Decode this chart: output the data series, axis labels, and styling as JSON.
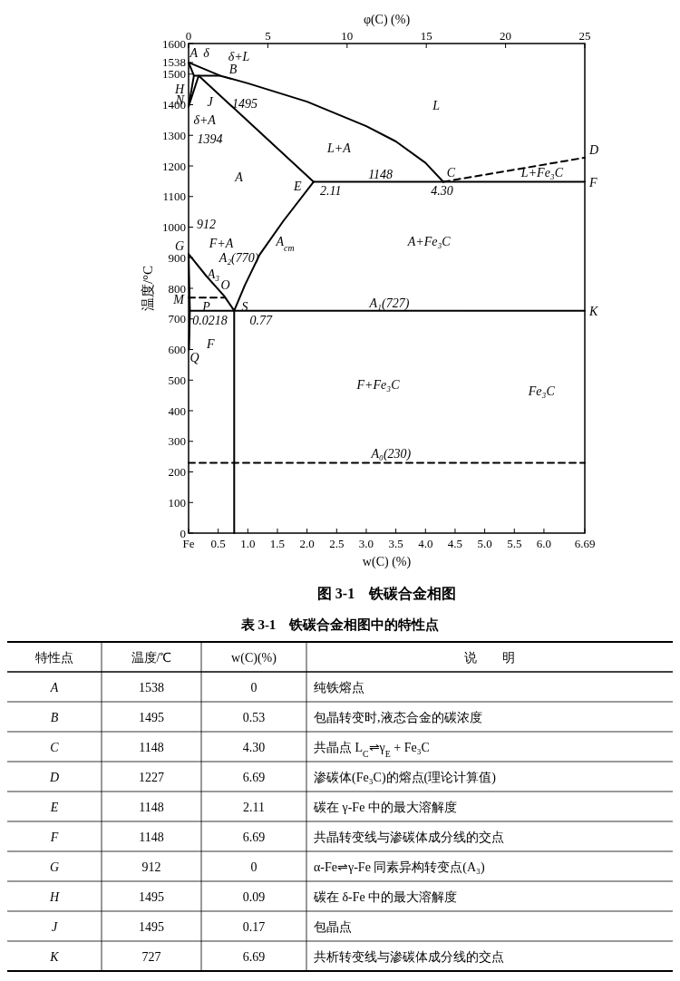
{
  "chart_data": [
    {
      "type": "line",
      "title": "图 3-1　铁碳合金相图",
      "xlabel": "w(C) (%)",
      "ylabel": "温度/°C",
      "x2label": "φ(C)  (%)",
      "xlim": [
        0,
        6.69
      ],
      "xticks": [
        {
          "value": 0,
          "label": "Fe"
        },
        0.5,
        {
          "value": 1,
          "label": "1.0"
        },
        1.5,
        {
          "value": 2,
          "label": "2.0"
        },
        2.5,
        {
          "value": 3,
          "label": "3.0"
        },
        3.5,
        {
          "value": 4,
          "label": "4.0"
        },
        4.5,
        {
          "value": 5,
          "label": "5.0"
        },
        5.5,
        {
          "value": 6,
          "label": "6.0"
        },
        6.69
      ],
      "x2lim": [
        0,
        25
      ],
      "x2ticks": [
        0,
        5,
        10,
        15,
        20,
        25
      ],
      "ylim": [
        0,
        1600
      ],
      "yticks": [
        0,
        100,
        200,
        300,
        400,
        500,
        600,
        700,
        800,
        900,
        1000,
        1100,
        1200,
        1300,
        1400,
        1500,
        1538,
        1600
      ],
      "series": [
        {
          "color": "#000000",
          "x": [
            0,
            0.53,
            1.0,
            2.0,
            3.0,
            3.5,
            4.0,
            4.3
          ],
          "values": [
            1538,
            1495,
            1470,
            1410,
            1330,
            1280,
            1210,
            1148
          ]
        },
        {
          "color": "#000000",
          "x": [
            0,
            0.09,
            0
          ],
          "values": [
            1538,
            1495,
            1394
          ]
        },
        {
          "color": "#000000",
          "x": [
            0.09,
            0.53
          ],
          "values": [
            1495,
            1495
          ]
        },
        {
          "color": "#000000",
          "x": [
            0,
            0.17,
            2.11
          ],
          "values": [
            1394,
            1495,
            1148
          ]
        },
        {
          "color": "#000000",
          "x": [
            2.11,
            6.69
          ],
          "values": [
            1148,
            1148
          ]
        },
        {
          "color": "#000000",
          "x": [
            4.3,
            6.69
          ],
          "values": [
            1148,
            1227
          ],
          "line_style": "dashed"
        },
        {
          "color": "#000000",
          "x": [
            2.11,
            1.6,
            1.2,
            0.95,
            0.77,
            0.77
          ],
          "values": [
            1148,
            1020,
            910,
            810,
            727,
            0
          ]
        },
        {
          "color": "#000000",
          "x": [
            0,
            0.3,
            0.6,
            0.77
          ],
          "values": [
            912,
            840,
            775,
            727
          ]
        },
        {
          "color": "#000000",
          "x": [
            0,
            0.0218,
            0.008
          ],
          "values": [
            912,
            727,
            600
          ]
        },
        {
          "color": "#000000",
          "x": [
            0.0218,
            6.69
          ],
          "values": [
            727,
            727
          ]
        },
        {
          "color": "#000000",
          "x": [
            0,
            0.6
          ],
          "values": [
            770,
            770
          ],
          "line_style": "dashed"
        },
        {
          "color": "#000000",
          "x": [
            0,
            6.69
          ],
          "values": [
            230,
            230
          ],
          "line_style": "dashed"
        }
      ],
      "annotations": [
        "L",
        "L+A",
        "A",
        "E",
        "2.11",
        "1148",
        "C",
        "4.30",
        "D",
        "L+Fe₃C",
        "F",
        "A+Fe₃C",
        "A$_{cm}$",
        "912",
        "G",
        "F+A",
        "A₂(770)",
        "A₃",
        "O",
        "M",
        "P",
        "S",
        "A₁(727)",
        "K",
        "0.0218",
        "0.77",
        "F",
        "Q",
        "F+Fe₃C",
        "Fe₃C",
        "A₀(230)",
        "A",
        "δ",
        "δ+L",
        "H",
        "B",
        "J",
        "N",
        "1495",
        "δ+A",
        "1394"
      ]
    },
    {
      "type": "other",
      "title": "表 3-1　铁碳合金相图中的特性点",
      "categories": [
        "特性点",
        "温度/℃",
        "w(C)(%)",
        "说　　明"
      ],
      "annotations": [
        "A",
        "1538",
        "0",
        "纯铁熔点",
        "B",
        "1495",
        "0.53",
        "包晶转变时,液态合金的碳浓度",
        "C",
        "1148",
        "4.30",
        "共晶点 L$_{C}$⇌γ$_{E}$ + Fe₃C",
        "D",
        "1227",
        "6.69",
        "渗碳体(Fe₃C)的熔点(理论计算值)",
        "E",
        "1148",
        "2.11",
        "碳在 γ-Fe 中的最大溶解度",
        "F",
        "1148",
        "6.69",
        "共晶转变线与渗碳体成分线的交点",
        "G",
        "912",
        "0",
        "α-Fe⇌γ-Fe 同素异构转变点(A₃)",
        "H",
        "1495",
        "0.09",
        "碳在 δ-Fe 中的最大溶解度",
        "J",
        "1495",
        "0.17",
        "包晶点",
        "K",
        "727",
        "6.69",
        "共析转变线与渗碳体成分线的交点"
      ]
    }
  ]
}
